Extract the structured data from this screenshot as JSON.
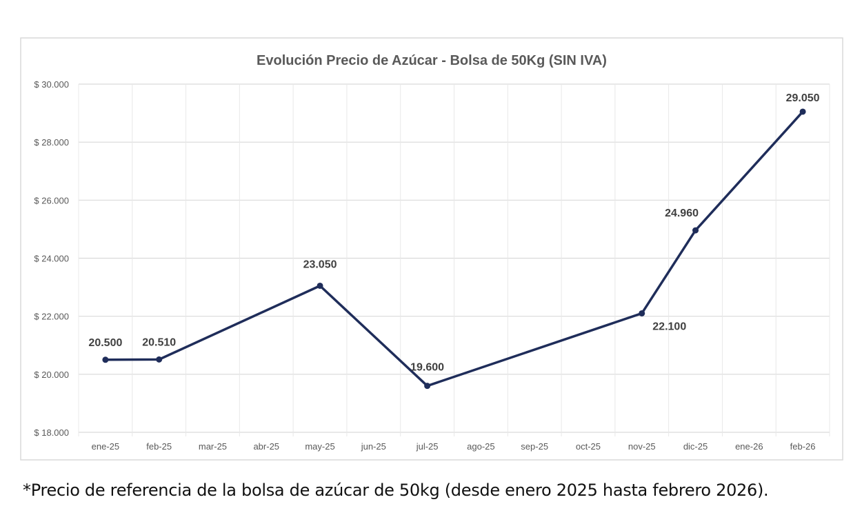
{
  "chart_data": {
    "type": "line",
    "title": "Evolución Precio de Azúcar - Bolsa de 50Kg (SIN IVA)",
    "xlabel": "",
    "ylabel": "",
    "categories": [
      "ene-25",
      "feb-25",
      "mar-25",
      "abr-25",
      "may-25",
      "jun-25",
      "jul-25",
      "ago-25",
      "sep-25",
      "oct-25",
      "nov-25",
      "dic-25",
      "ene-26",
      "feb-26"
    ],
    "series": [
      {
        "values": [
          20500,
          20510,
          null,
          null,
          23050,
          null,
          19600,
          null,
          null,
          null,
          22100,
          24960,
          null,
          29050
        ]
      }
    ],
    "data_labels": [
      "20.500",
      "20.510",
      null,
      null,
      "23.050",
      null,
      "19.600",
      null,
      null,
      null,
      "22.100",
      "24.960",
      null,
      "29.050"
    ],
    "ylim": [
      18000,
      30000
    ],
    "yticks": [
      18000,
      20000,
      22000,
      24000,
      26000,
      28000,
      30000
    ],
    "ytick_labels": [
      "$ 18.000",
      "$ 20.000",
      "$ 22.000",
      "$ 24.000",
      "$ 26.000",
      "$ 28.000",
      "$ 30.000"
    ],
    "grid": true,
    "legend": "none",
    "line_color": "#1f2d5a"
  },
  "caption": "*Precio de referencia de la bolsa de azúcar de 50kg (desde enero 2025 hasta febrero 2026)."
}
